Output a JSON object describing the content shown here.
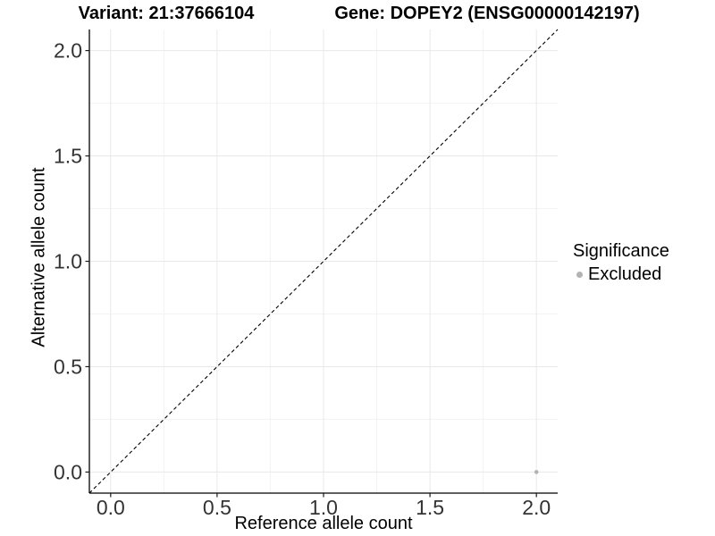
{
  "chart_data": {
    "type": "scatter",
    "title_left": "Variant: 21:37666104",
    "title_right": "Gene: DOPEY2 (ENSG00000142197)",
    "xlabel": "Reference allele count",
    "ylabel": "Alternative allele count",
    "xlim": [
      -0.1,
      2.1
    ],
    "ylim": [
      -0.1,
      2.1
    ],
    "xticks": {
      "values": [
        0,
        0.5,
        1,
        1.5,
        2
      ],
      "labels": [
        "0.0",
        "0.5",
        "1.0",
        "1.5",
        "2.0"
      ]
    },
    "yticks": {
      "values": [
        0,
        0.5,
        1,
        1.5,
        2
      ],
      "labels": [
        "0.0",
        "0.5",
        "1.0",
        "1.5",
        "2.0"
      ]
    },
    "minor_xticks": [
      0.25,
      0.75,
      1.25,
      1.75
    ],
    "minor_yticks": [
      0.25,
      0.75,
      1.25,
      1.75
    ],
    "grid": true,
    "reference_line": {
      "type": "identity",
      "slope": 1,
      "intercept": 0,
      "style": "dashed",
      "color": "#000000"
    },
    "series": [
      {
        "name": "Excluded",
        "color": "#b3b3b3",
        "points": [
          {
            "x": 2.0,
            "y": 0.0
          }
        ]
      }
    ],
    "legend": {
      "position": "right",
      "title": "Significance",
      "entries": [
        {
          "label": "Excluded",
          "color": "#b3b3b3"
        }
      ]
    },
    "style": {
      "background": "#ffffff",
      "grid_major": "#e8e8e8",
      "grid_minor": "#f3f3f3",
      "axis_color": "#000000",
      "tick_color": "#1a1a1a",
      "tick_label_color": "#333333",
      "point_radius": 2.3
    }
  }
}
